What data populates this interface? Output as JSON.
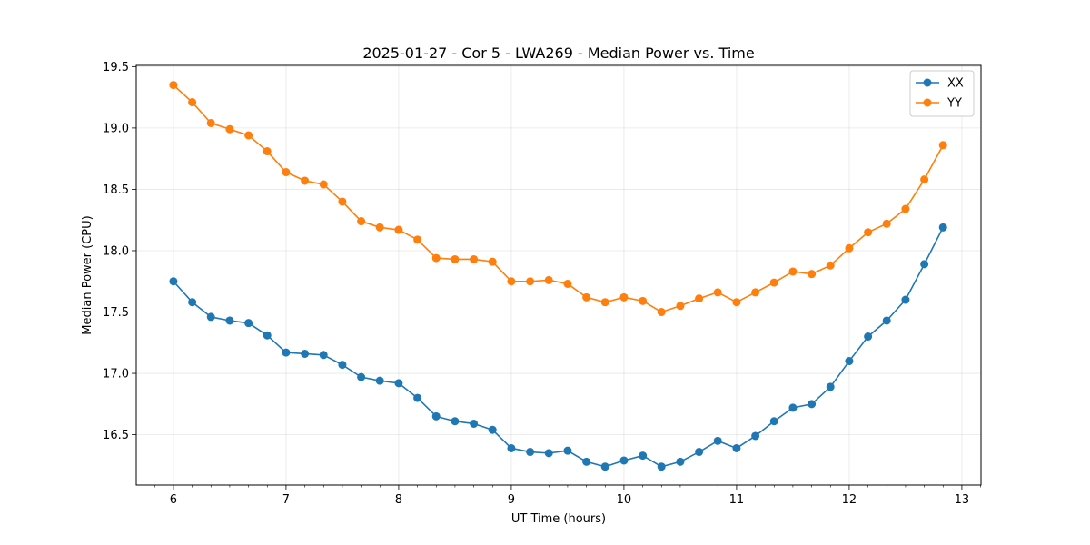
{
  "chart_data": {
    "type": "line",
    "title": "2025-01-27 - Cor 5 - LWA269 - Median Power vs. Time",
    "xlabel": "UT Time (hours)",
    "ylabel": "Median Power (CPU)",
    "xlim": [
      5.67,
      13.17
    ],
    "ylim": [
      16.09,
      19.51
    ],
    "xticks": [
      6,
      7,
      8,
      9,
      10,
      11,
      12,
      13
    ],
    "xtick_labels": [
      "6",
      "7",
      "8",
      "9",
      "10",
      "11",
      "12",
      "13"
    ],
    "yticks": [
      16.5,
      17.0,
      17.5,
      18.0,
      18.5,
      19.0,
      19.5
    ],
    "ytick_labels": [
      "16.5",
      "17.0",
      "17.5",
      "18.0",
      "18.5",
      "19.0",
      "19.5"
    ],
    "grid": true,
    "legend_position": "top-right",
    "x": [
      6.0,
      6.167,
      6.333,
      6.5,
      6.667,
      6.833,
      7.0,
      7.167,
      7.333,
      7.5,
      7.667,
      7.833,
      8.0,
      8.167,
      8.333,
      8.5,
      8.667,
      8.833,
      9.0,
      9.167,
      9.333,
      9.5,
      9.667,
      9.833,
      10.0,
      10.167,
      10.333,
      10.5,
      10.667,
      10.833,
      11.0,
      11.167,
      11.333,
      11.5,
      11.667,
      11.833,
      12.0,
      12.167,
      12.333,
      12.5,
      12.667,
      12.833
    ],
    "series": [
      {
        "name": "XX",
        "color": "#1f77b4",
        "values": [
          17.75,
          17.58,
          17.46,
          17.43,
          17.41,
          17.31,
          17.17,
          17.16,
          17.15,
          17.07,
          16.97,
          16.94,
          16.92,
          16.8,
          16.65,
          16.61,
          16.59,
          16.54,
          16.39,
          16.36,
          16.35,
          16.37,
          16.28,
          16.24,
          16.29,
          16.33,
          16.24,
          16.28,
          16.36,
          16.45,
          16.39,
          16.49,
          16.61,
          16.72,
          16.75,
          16.89,
          17.1,
          17.3,
          17.43,
          17.6,
          17.89,
          18.19
        ]
      },
      {
        "name": "YY",
        "color": "#ff7f0e",
        "values": [
          19.35,
          19.21,
          19.04,
          18.99,
          18.94,
          18.81,
          18.64,
          18.57,
          18.54,
          18.4,
          18.24,
          18.19,
          18.17,
          18.09,
          17.94,
          17.93,
          17.93,
          17.91,
          17.75,
          17.75,
          17.76,
          17.73,
          17.62,
          17.58,
          17.62,
          17.59,
          17.5,
          17.55,
          17.61,
          17.66,
          17.58,
          17.66,
          17.74,
          17.83,
          17.81,
          17.88,
          18.02,
          18.15,
          18.22,
          18.34,
          18.58,
          18.86
        ]
      }
    ]
  }
}
